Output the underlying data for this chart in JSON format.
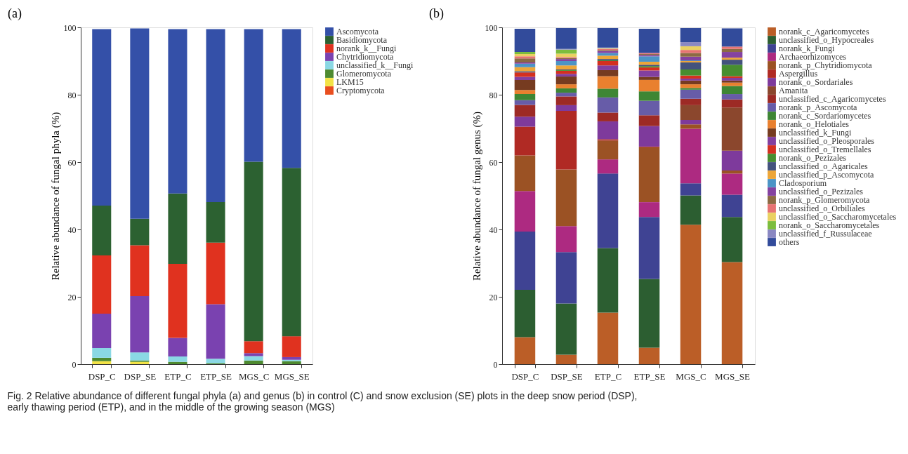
{
  "chart_data": [
    {
      "type": "bar",
      "stacked": true,
      "title": "(a)",
      "ylabel": "Relative abundance of fungal phyla (%)",
      "categories": [
        "DSP_C",
        "DSP_SE",
        "ETP_C",
        "ETP_SE",
        "MGS_C",
        "MGS_SE"
      ],
      "ylim": [
        0,
        100
      ],
      "yticks": [
        0,
        20,
        40,
        60,
        80,
        100
      ],
      "grid": false,
      "legend": "right",
      "annotations": [
        "Fig. 2 Relative abundance of different fungal phyla (a) and genus (b) in control (C) and snow exclusion (SE) plots in the deep snow period (DSP), early thawing period (ETP), and in the middle of the growing season (MGS)"
      ],
      "series": [
        {
          "name": "Cryptomycota",
          "color": "#e94e1f",
          "values": [
            0,
            0,
            0,
            0,
            0,
            0
          ]
        },
        {
          "name": "LKM15",
          "color": "#f3e346",
          "values": [
            0.9,
            0.7,
            0,
            0,
            0,
            0
          ]
        },
        {
          "name": "Glomeromycota",
          "color": "#4e8a30",
          "values": [
            1.0,
            0.4,
            0.7,
            0.3,
            1.1,
            0.9
          ]
        },
        {
          "name": "unclassified_k__Fungi",
          "color": "#8ad8e4",
          "values": [
            2.9,
            2.4,
            1.6,
            1.3,
            1.3,
            0.4
          ]
        },
        {
          "name": "Chytridiomycota",
          "color": "#7a42b0",
          "values": [
            10.2,
            16.7,
            5.5,
            16.2,
            0.9,
            0.8
          ]
        },
        {
          "name": "norank_k__Fungi",
          "color": "#e0321f",
          "values": [
            17.3,
            15.1,
            22.0,
            18.3,
            3.5,
            6.2
          ]
        },
        {
          "name": "Basidiomycota",
          "color": "#2c6131",
          "values": [
            14.8,
            7.9,
            20.9,
            12.0,
            53.3,
            50.0
          ]
        },
        {
          "name": "Ascomycota",
          "color": "#3450a8",
          "values": [
            52.4,
            56.5,
            48.8,
            51.4,
            39.4,
            41.2
          ]
        }
      ]
    },
    {
      "type": "bar",
      "stacked": true,
      "title": "(b)",
      "ylabel": "Relative abundance of fungal genus (%)",
      "categories": [
        "DSP_C",
        "DSP_SE",
        "ETP_C",
        "ETP_SE",
        "MGS_C",
        "MGS_SE"
      ],
      "ylim": [
        0,
        100
      ],
      "yticks": [
        0,
        20,
        40,
        60,
        80,
        100
      ],
      "grid": false,
      "legend": "right",
      "series": [
        {
          "name": "norank_c_Agaricomycetes",
          "color": "#bb5e27",
          "values": [
            8.0,
            2.8,
            15.3,
            4.9,
            41.4,
            30.3
          ]
        },
        {
          "name": "unclassified_o_Hypocreales",
          "color": "#2c5e31",
          "values": [
            14.1,
            15.2,
            19.2,
            20.4,
            8.7,
            13.4
          ]
        },
        {
          "name": "norank_k_Fungi",
          "color": "#3f4393",
          "values": [
            17.3,
            15.3,
            22.1,
            18.4,
            3.6,
            6.6
          ]
        },
        {
          "name": "Archaeorhizomyces",
          "color": "#ad2a81",
          "values": [
            12.0,
            7.7,
            4.2,
            4.4,
            16.2,
            6.3
          ]
        },
        {
          "name": "norank_p_Chytridiomycota",
          "color": "#9b5224",
          "values": [
            10.6,
            16.8,
            5.6,
            16.3,
            1.3,
            0.9
          ]
        },
        {
          "name": "Aspergillus",
          "color": "#b02a24",
          "values": [
            8.5,
            17.4,
            0.4,
            0.2,
            0,
            0
          ]
        },
        {
          "name": "norank_o_Sordariales",
          "color": "#7e3a9c",
          "values": [
            3.0,
            1.7,
            5.3,
            6.1,
            1.3,
            5.9
          ]
        },
        {
          "name": "Amanita",
          "color": "#8b472d",
          "values": [
            0,
            0,
            0,
            0,
            4.4,
            12.8
          ]
        },
        {
          "name": "unclassified_c_Agaricomycetes",
          "color": "#9d2a25",
          "values": [
            3.5,
            2.6,
            2.6,
            3.2,
            1.9,
            2.4
          ]
        },
        {
          "name": "norank_p_Ascomycota",
          "color": "#675ca8",
          "values": [
            1.4,
            1.1,
            4.5,
            4.3,
            2.7,
            1.6
          ]
        },
        {
          "name": "norank_c_Sordariomycetes",
          "color": "#3e8634",
          "values": [
            1.8,
            1.3,
            2.6,
            2.8,
            0.5,
            2.4
          ]
        },
        {
          "name": "norank_o_Helotiales",
          "color": "#e9802f",
          "values": [
            1.2,
            1.2,
            3.7,
            3.4,
            1.1,
            1.0
          ]
        },
        {
          "name": "unclassified_k_Fungi",
          "color": "#763b20",
          "values": [
            3.0,
            2.3,
            1.8,
            0.9,
            1.1,
            0.6
          ]
        },
        {
          "name": "unclassified_o_Pleosporales",
          "color": "#823f9f",
          "values": [
            0.9,
            0.8,
            1.4,
            1.9,
            0.6,
            0.8
          ]
        },
        {
          "name": "unclassified_o_Tremellales",
          "color": "#d4301f",
          "values": [
            1.3,
            0.9,
            1.3,
            0.9,
            0.9,
            0.5
          ]
        },
        {
          "name": "norank_o_Pezizales",
          "color": "#478e2f",
          "values": [
            null,
            0.2,
            0.2,
            0.4,
            1.8,
            3.4
          ]
        },
        {
          "name": "unclassified_o_Agaricales",
          "color": "#43527d",
          "values": [
            0.4,
            0.2,
            0.4,
            0.4,
            2.1,
            1.5
          ]
        },
        {
          "name": "unclassified_p_Ascomycota",
          "color": "#eda638",
          "values": [
            1.2,
            1.2,
            1.0,
            0.9,
            0.4,
            0.6
          ]
        },
        {
          "name": "Cladosporium",
          "color": "#4c94c6",
          "values": [
            1.0,
            1.3,
            0.8,
            1.6,
            0.2,
            null
          ]
        },
        {
          "name": "unclassified_o_Pezizales",
          "color": "#8442a0",
          "values": [
            0.4,
            0.6,
            0.6,
            0.4,
            1.1,
            1.7
          ]
        },
        {
          "name": "norank_p_Glomeromycota",
          "color": "#8c6a43",
          "values": [
            1.2,
            0.3,
            0.3,
            0.3,
            1.1,
            0.9
          ]
        },
        {
          "name": "unclassified_o_Orbiliales",
          "color": "#e77373",
          "values": [
            0.6,
            0.3,
            0.3,
            0.3,
            0.9,
            0.7
          ]
        },
        {
          "name": "unclassified_o_Saccharomycetales",
          "color": "#ead162",
          "values": [
            0.7,
            1.0,
            0.2,
            0,
            1.1,
            0
          ]
        },
        {
          "name": "norank_o_Saccharomycetales",
          "color": "#7cbd3d",
          "values": [
            0.6,
            1.2,
            0,
            0,
            0,
            0
          ]
        },
        {
          "name": "unclassified_f_Russulaceae",
          "color": "#8a88c2",
          "values": [
            null,
            0.2,
            0.2,
            null,
            1.2,
            0
          ]
        },
        {
          "name": "others",
          "color": "#324b9b",
          "values": [
            6.9,
            6.2,
            5.8,
            7.2,
            4.2,
            5.4
          ]
        }
      ]
    }
  ]
}
